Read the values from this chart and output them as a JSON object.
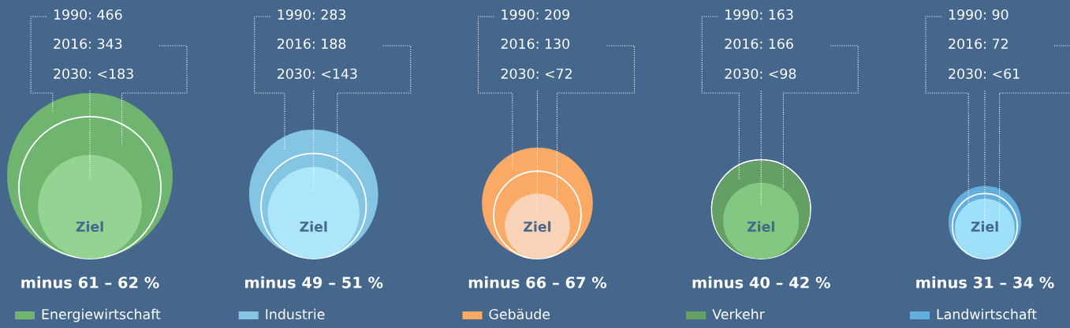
{
  "chart_data": {
    "type": "other",
    "categories": [
      "Energiewirtschaft",
      "Industrie",
      "Gebäude",
      "Verkehr",
      "Landwirtschaft"
    ],
    "colors": [
      "#6fb56f",
      "#85c5e4",
      "#fbaa66",
      "#64a064",
      "#63aedc"
    ],
    "series": [
      {
        "values": [
          466,
          283,
          209,
          163,
          90
        ],
        "value_labels": [
          "1990: 466",
          "1990: 283",
          "1990: 209",
          "1990: 163",
          "1990: 90"
        ],
        "colors": [
          "#6fb56f",
          "#85c5e4",
          "#fbaa66",
          "#64a064",
          "#63aedc"
        ]
      },
      {
        "values": [
          343,
          188,
          130,
          166,
          72
        ],
        "value_labels": [
          "2016: 343",
          "2016: 188",
          "2016: 130",
          "2016: 166",
          "2016: 72"
        ],
        "color": "#ffffff"
      },
      {
        "values": [
          183,
          143,
          72,
          98,
          61
        ],
        "value_labels": [
          "2030: <183",
          "2030: <143",
          "2030: <72",
          "2030: <98",
          "2030: <61"
        ],
        "colors": [
          "#93d492",
          "#ade6f8",
          "#f8d3b7",
          "#82c882",
          "#9ee0f8"
        ]
      }
    ],
    "annotations": [
      {
        "text": "Ziel",
        "x": "Energiewirtschaft"
      },
      {
        "text": "Ziel",
        "x": "Industrie"
      },
      {
        "text": "Ziel",
        "x": "Gebäude"
      },
      {
        "text": "Ziel",
        "x": "Verkehr"
      },
      {
        "text": "Ziel",
        "x": "Landwirtschaft"
      },
      {
        "text": "minus 61 – 62 %",
        "x": "Energiewirtschaft"
      },
      {
        "text": "minus 49 – 51 %",
        "x": "Industrie"
      },
      {
        "text": "minus 66 – 67 %",
        "x": "Gebäude"
      },
      {
        "text": "minus 40 – 42 %",
        "x": "Verkehr"
      },
      {
        "text": "minus 31 – 34 %",
        "x": "Landwirtschaft"
      }
    ]
  }
}
